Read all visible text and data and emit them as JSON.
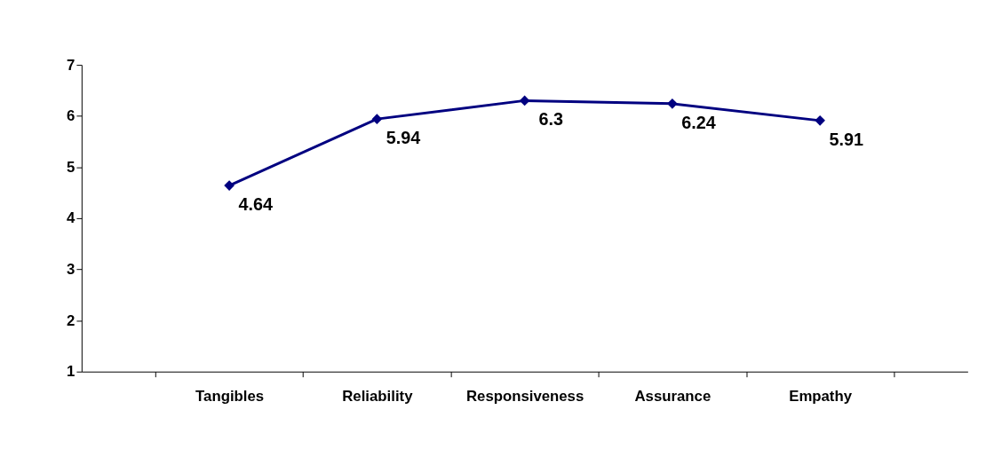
{
  "chart_data": {
    "type": "line",
    "categories": [
      "Tangibles",
      "Reliability",
      "Responsiveness",
      "Assurance",
      "Empathy"
    ],
    "series": [
      {
        "color": "#000080",
        "values": [
          4.64,
          5.94,
          6.3,
          6.24,
          5.91
        ]
      }
    ],
    "ylim": [
      1,
      7
    ],
    "yticks": [
      1,
      2,
      3,
      4,
      5,
      6,
      7
    ],
    "data_labels": true,
    "marker": "diamond",
    "line_style": "solid",
    "grid": false,
    "legend": false
  }
}
